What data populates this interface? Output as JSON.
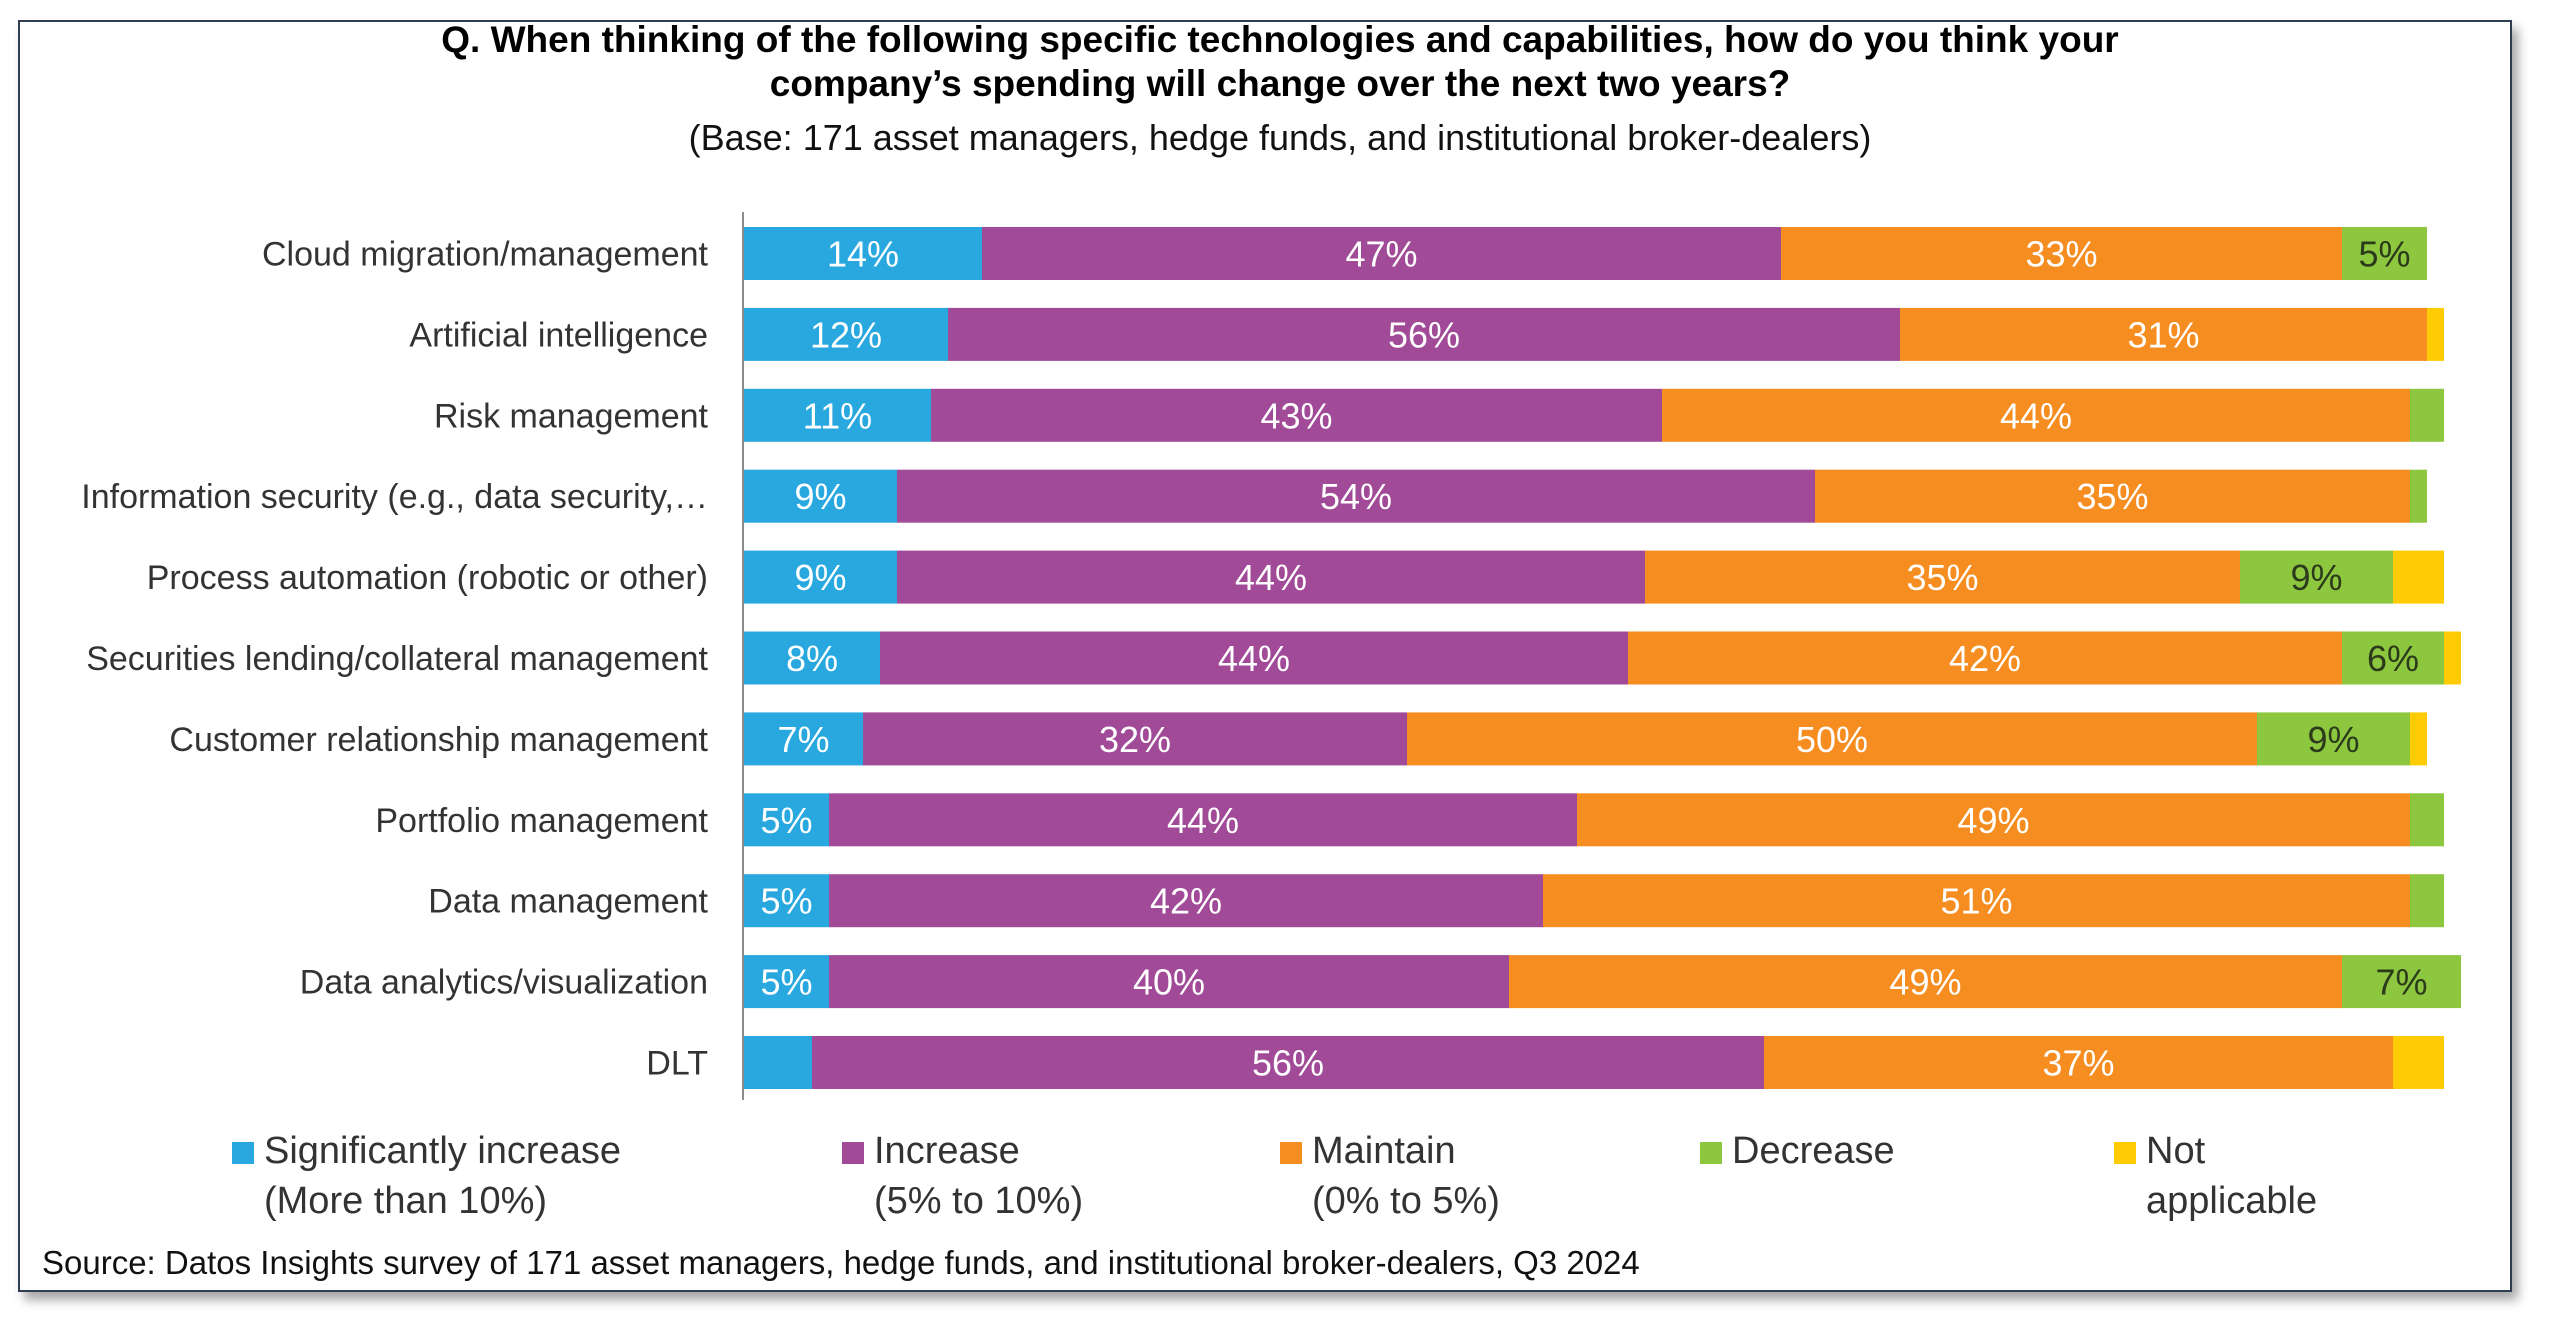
{
  "chart_data": {
    "type": "bar",
    "orientation": "horizontal",
    "stacked": true,
    "title_lines": [
      "Q. When thinking of the following specific technologies and capabilities, how do you think your",
      "company’s spending will change over the next two years?"
    ],
    "subtitle": "(Base: 171 asset managers, hedge funds, and institutional broker-dealers)",
    "xlabel": "",
    "ylabel": "",
    "xlim": [
      0,
      100
    ],
    "grid": false,
    "legend_position": "bottom",
    "categories": [
      "Cloud migration/management",
      "Artificial intelligence",
      "Risk management",
      "Information security (e.g., data security,…",
      "Process automation (robotic or other)",
      "Securities lending/collateral management",
      "Customer relationship management",
      "Portfolio management",
      "Data management",
      "Data analytics/visualization",
      "DLT"
    ],
    "series": [
      {
        "name": "Significantly increase (More than 10%)",
        "color": "#29A8E0",
        "label_color": "#ffffff",
        "values": [
          14,
          12,
          11,
          9,
          9,
          8,
          7,
          5,
          5,
          5,
          4
        ],
        "labels": [
          "14%",
          "12%",
          "11%",
          "9%",
          "9%",
          "8%",
          "7%",
          "5%",
          "5%",
          "5%",
          ""
        ]
      },
      {
        "name": "Increase (5% to 10%)",
        "color": "#A14A98",
        "label_color": "#ffffff",
        "values": [
          47,
          56,
          43,
          54,
          44,
          44,
          32,
          44,
          42,
          40,
          56
        ],
        "labels": [
          "47%",
          "56%",
          "43%",
          "54%",
          "44%",
          "44%",
          "32%",
          "44%",
          "42%",
          "40%",
          "56%"
        ]
      },
      {
        "name": "Maintain (0% to 5%)",
        "color": "#F68D20",
        "label_color": "#ffffff",
        "values": [
          33,
          31,
          44,
          35,
          35,
          42,
          50,
          49,
          51,
          49,
          37
        ],
        "labels": [
          "33%",
          "31%",
          "44%",
          "35%",
          "35%",
          "42%",
          "50%",
          "49%",
          "51%",
          "49%",
          "37%"
        ]
      },
      {
        "name": "Decrease",
        "color": "#8DC63F",
        "label_color": "#2b3a1a",
        "values": [
          5,
          0,
          2,
          1,
          9,
          6,
          9,
          2,
          2,
          7,
          0
        ],
        "labels": [
          "5%",
          "",
          "",
          "",
          "9%",
          "6%",
          "9%",
          "",
          "",
          "7%",
          ""
        ]
      },
      {
        "name": "Not applicable",
        "color": "#FFCB05",
        "label_color": "#333333",
        "values": [
          0,
          1,
          0,
          0,
          3,
          1,
          1,
          0,
          0,
          0,
          3
        ],
        "labels": [
          "",
          "",
          "",
          "",
          "",
          "",
          "",
          "",
          "",
          "",
          ""
        ]
      }
    ],
    "legend": [
      {
        "line1": "Significantly increase",
        "line2": "(More than 10%)",
        "color": "#29A8E0"
      },
      {
        "line1": "Increase",
        "line2": "(5% to 10%)",
        "color": "#A14A98"
      },
      {
        "line1": "Maintain",
        "line2": "(0% to 5%)",
        "color": "#F68D20"
      },
      {
        "line1": "Decrease",
        "line2": "",
        "color": "#8DC63F"
      },
      {
        "line1": "Not",
        "line2": "applicable",
        "color": "#FFCB05"
      }
    ],
    "source": "Source: Datos Insights survey of 171 asset managers, hedge funds, and institutional broker-dealers, Q3 2024"
  }
}
